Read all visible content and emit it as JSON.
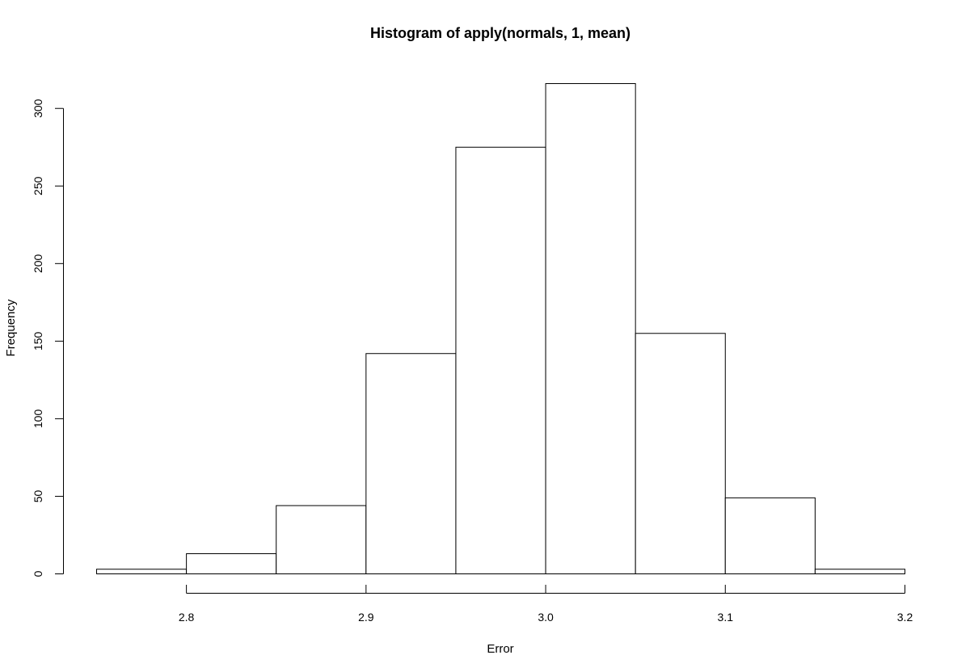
{
  "chart_data": {
    "type": "bar",
    "title": "Histogram of apply(normals, 1, mean)",
    "xlabel": "Error",
    "ylabel": "Frequency",
    "bins": [
      {
        "x0": 2.75,
        "x1": 2.8,
        "value": 3
      },
      {
        "x0": 2.8,
        "x1": 2.85,
        "value": 13
      },
      {
        "x0": 2.85,
        "x1": 2.9,
        "value": 44
      },
      {
        "x0": 2.9,
        "x1": 2.95,
        "value": 142
      },
      {
        "x0": 2.95,
        "x1": 3.0,
        "value": 275
      },
      {
        "x0": 3.0,
        "x1": 3.05,
        "value": 316
      },
      {
        "x0": 3.05,
        "x1": 3.1,
        "value": 155
      },
      {
        "x0": 3.1,
        "x1": 3.15,
        "value": 49
      },
      {
        "x0": 3.15,
        "x1": 3.2,
        "value": 3
      }
    ],
    "x_ticks": [
      2.8,
      2.9,
      3.0,
      3.1,
      3.2
    ],
    "x_tick_labels": [
      "2.8",
      "2.9",
      "3.0",
      "3.1",
      "3.2"
    ],
    "y_ticks": [
      0,
      50,
      100,
      150,
      200,
      250,
      300
    ],
    "y_tick_labels": [
      "0",
      "50",
      "100",
      "150",
      "200",
      "250",
      "300"
    ],
    "xlim": [
      2.75,
      3.2
    ],
    "ylim": [
      0,
      316
    ],
    "grid": false,
    "legend": "none",
    "colors": {
      "bar_fill": "#ffffff",
      "bar_stroke": "#000000"
    }
  }
}
